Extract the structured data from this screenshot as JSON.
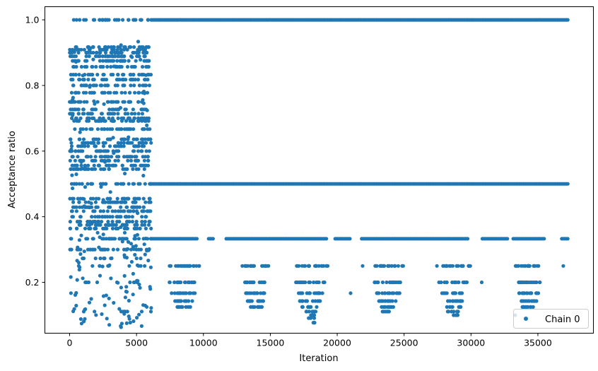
{
  "chart_data": {
    "type": "scatter",
    "title": "",
    "xlabel": "Iteration",
    "ylabel": "Acceptance ratio",
    "xlim": [
      -1850,
      39150
    ],
    "ylim": [
      0.045,
      1.04
    ],
    "x_ticks": [
      0,
      5000,
      10000,
      15000,
      20000,
      25000,
      30000,
      35000
    ],
    "x_tick_labels": [
      "0",
      "5000",
      "10000",
      "15000",
      "20000",
      "25000",
      "30000",
      "35000"
    ],
    "y_ticks": [
      0.2,
      0.4,
      0.6,
      0.8,
      1.0
    ],
    "y_tick_labels": [
      "0.2",
      "0.4",
      "0.6",
      "0.8",
      "1.0"
    ],
    "grid": false,
    "legend_position": "bottom-right",
    "series": [
      {
        "name": "Chain 0",
        "color": "#1f77b4",
        "marker": "circle",
        "x_range": [
          0,
          37300
        ],
        "regions": [
          {
            "x": [
              0,
              6100
            ],
            "levels": [
              0.111,
              0.2,
              0.25,
              0.273,
              0.3,
              0.333,
              0.364,
              0.375,
              0.385,
              0.4,
              0.417,
              0.429,
              0.444,
              0.455,
              0.5,
              0.545,
              0.556,
              0.571,
              0.583,
              0.6,
              0.615,
              0.625,
              0.636,
              0.667,
              0.692,
              0.7,
              0.714,
              0.727,
              0.75,
              0.778,
              0.8,
              0.818,
              0.833,
              0.857,
              0.875,
              0.889,
              0.9,
              0.909,
              0.917,
              1.0
            ],
            "scatter_y": [
              0.06,
              0.95
            ]
          },
          {
            "x": [
              6100,
              37300
            ],
            "levels": [
              1.0,
              0.5
            ]
          },
          {
            "x": [
              6100,
              37300
            ],
            "levels": [
              0.333
            ],
            "gaps": [
              [
                9600,
                10300
              ],
              [
                10800,
                11700
              ],
              [
                19200,
                19800
              ],
              [
                21000,
                21800
              ],
              [
                29800,
                30800
              ],
              [
                32800,
                33100
              ],
              [
                35500,
                36700
              ]
            ]
          }
        ],
        "sparse_clusters": [
          {
            "x_center": 8500,
            "x_spread": 1200,
            "levels": [
              0.25,
              0.2,
              0.167,
              0.143,
              0.125
            ]
          },
          {
            "x_center": 13900,
            "x_spread": 1000,
            "levels": [
              0.25,
              0.2,
              0.167,
              0.143,
              0.125
            ]
          },
          {
            "x_center": 18000,
            "x_spread": 1300,
            "levels": [
              0.25,
              0.2,
              0.167,
              0.143,
              0.125,
              0.111,
              0.1,
              0.091,
              0.077
            ]
          },
          {
            "x_center": 23800,
            "x_spread": 1200,
            "levels": [
              0.25,
              0.2,
              0.167,
              0.143,
              0.125,
              0.111
            ]
          },
          {
            "x_center": 28700,
            "x_spread": 1300,
            "levels": [
              0.25,
              0.2,
              0.167,
              0.143,
              0.125,
              0.111,
              0.1
            ]
          },
          {
            "x_center": 34300,
            "x_spread": 1000,
            "levels": [
              0.25,
              0.2,
              0.167,
              0.143,
              0.125
            ]
          }
        ],
        "isolated_points": [
          {
            "x": 21000,
            "y": 0.167
          },
          {
            "x": 21900,
            "y": 0.25
          },
          {
            "x": 30800,
            "y": 0.2
          },
          {
            "x": 33300,
            "y": 0.1
          },
          {
            "x": 36900,
            "y": 0.25
          }
        ]
      }
    ]
  }
}
